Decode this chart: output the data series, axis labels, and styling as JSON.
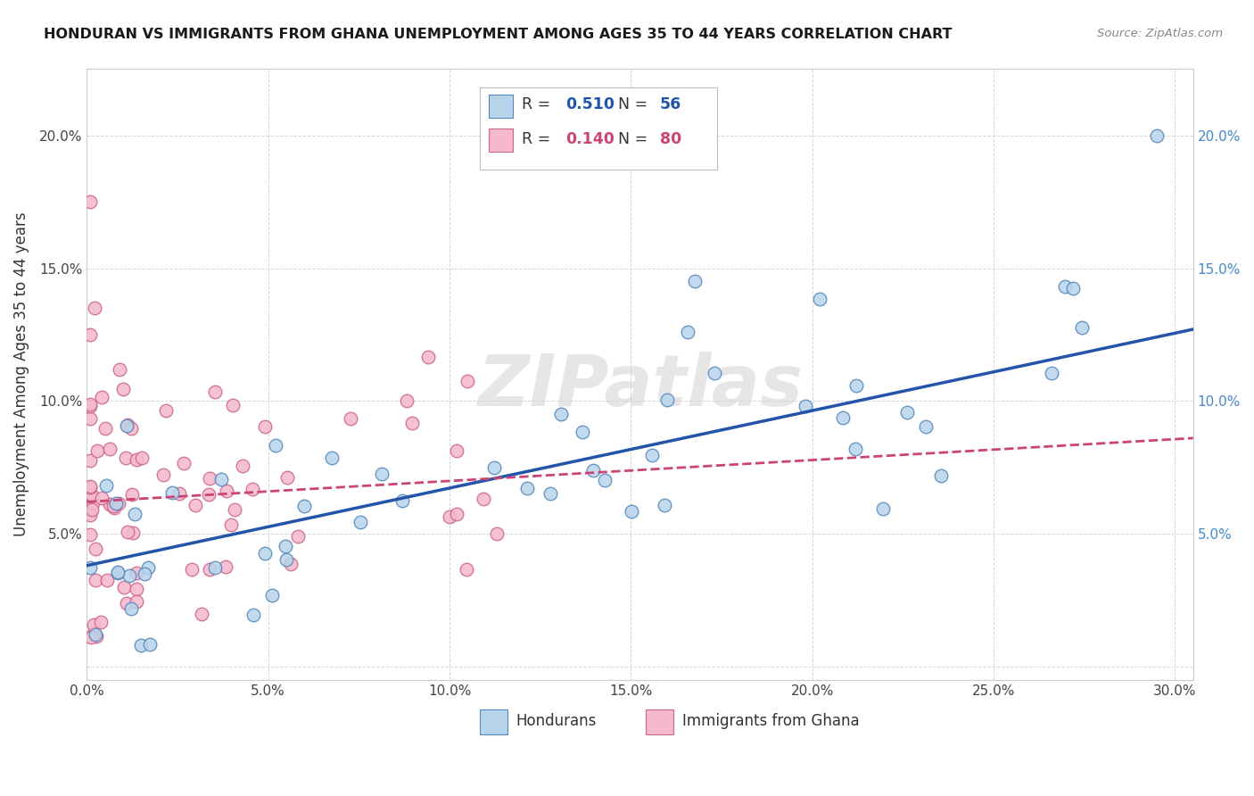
{
  "title": "HONDURAN VS IMMIGRANTS FROM GHANA UNEMPLOYMENT AMONG AGES 35 TO 44 YEARS CORRELATION CHART",
  "source": "Source: ZipAtlas.com",
  "ylabel": "Unemployment Among Ages 35 to 44 years",
  "xlim": [
    0.0,
    0.305
  ],
  "ylim": [
    -0.005,
    0.225
  ],
  "xticks": [
    0.0,
    0.05,
    0.1,
    0.15,
    0.2,
    0.25,
    0.3
  ],
  "xtick_labels": [
    "0.0%",
    "5.0%",
    "10.0%",
    "15.0%",
    "20.0%",
    "25.0%",
    "30.0%"
  ],
  "yticks": [
    0.0,
    0.05,
    0.1,
    0.15,
    0.2
  ],
  "ytick_labels_left": [
    "",
    "5.0%",
    "10.0%",
    "15.0%",
    "20.0%"
  ],
  "ytick_labels_right": [
    "",
    "5.0%",
    "10.0%",
    "15.0%",
    "20.0%"
  ],
  "honduran_face_color": "#b8d4ea",
  "honduran_edge_color": "#5588bb",
  "ghana_face_color": "#f5b8cc",
  "ghana_edge_color": "#cc6688",
  "trend_honduran_color": "#2255aa",
  "trend_ghana_color": "#cc4477",
  "R_honduran": "0.510",
  "N_honduran": "56",
  "R_ghana": "0.140",
  "N_ghana": "80",
  "label_honduran": "Hondurans",
  "label_ghana": "Immigrants from Ghana",
  "watermark": "ZIPatlas",
  "bg_color": "#ffffff",
  "grid_color": "#cccccc",
  "right_tick_color": "#4488cc",
  "trend_honduran_start_y": 0.038,
  "trend_honduran_end_y": 0.127,
  "trend_ghana_start_y": 0.062,
  "trend_ghana_end_y": 0.086
}
